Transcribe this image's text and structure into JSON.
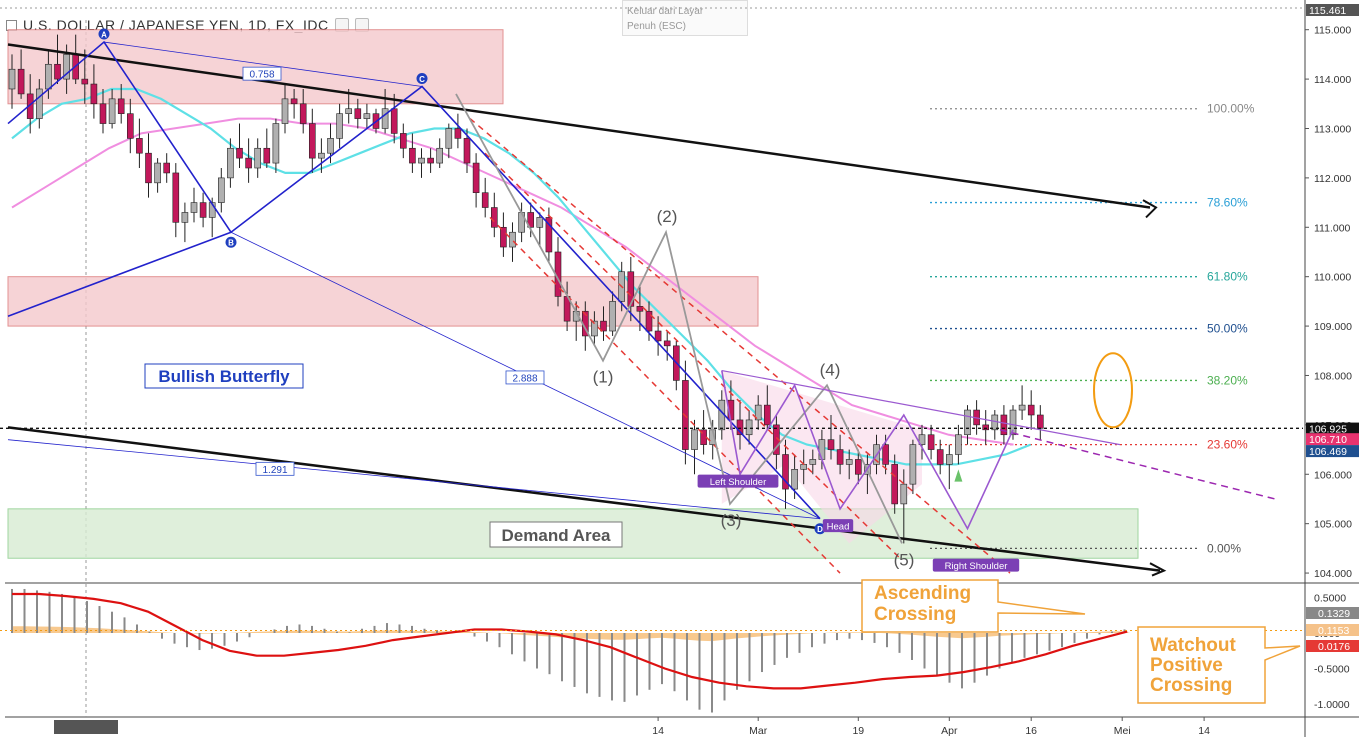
{
  "header": {
    "title": "U.S. DOLLAR / JAPANESE YEN, 1D, FX_IDC",
    "tooltip_line1": "Keluar dari Layar",
    "tooltip_line2": "Penuh (ESC)"
  },
  "colors": {
    "bull": "#b0b0b0",
    "bear": "#c2185b",
    "candle_border": "#222222",
    "ema_fast": "#5ee0e6",
    "ema_slow": "#f08ee0",
    "trend": "#111111",
    "harmonic": "#2222cc",
    "supply": "#f5c9cc",
    "demand": "#d8ecd3",
    "macd_hist": "#8a8a8a",
    "macd_signal": "#dd1111",
    "macd_area": "#f7c07a",
    "annot": "#f0a33a"
  },
  "chart_data": {
    "type": "candlestick",
    "symbol": "U.S. DOLLAR / JAPANESE YEN, 1D, FX_IDC",
    "ylim": [
      103.9,
      115.5
    ],
    "y_ticks": [
      "115.000",
      "114.000",
      "113.000",
      "112.000",
      "111.000",
      "110.000",
      "109.000",
      "108.000",
      "107.000",
      "106.000",
      "105.000",
      "104.000"
    ],
    "price_labels": [
      {
        "text": "115.461",
        "value": 115.461,
        "color": "#ffffff",
        "bg": "#555555"
      },
      {
        "text": "106.925",
        "value": 106.925,
        "color": "#ffffff",
        "bg": "#111111"
      },
      {
        "text": "106.710",
        "value": 106.71,
        "color": "#ffffff",
        "bg": "#e8336f"
      },
      {
        "text": "106.469",
        "value": 106.469,
        "color": "#ffffff",
        "bg": "#1f4f8f"
      }
    ],
    "x_ticks": [
      {
        "label": "14",
        "idx": 71
      },
      {
        "label": "Mar",
        "idx": 82
      },
      {
        "label": "19",
        "idx": 93
      },
      {
        "label": "Apr",
        "idx": 103
      },
      {
        "label": "16",
        "idx": 112
      },
      {
        "label": "Mei",
        "idx": 122
      },
      {
        "label": "14",
        "idx": 131
      }
    ],
    "candles": [
      [
        113.8,
        114.5,
        113.4,
        114.2
      ],
      [
        114.2,
        114.6,
        113.6,
        113.7
      ],
      [
        113.7,
        114.1,
        112.9,
        113.2
      ],
      [
        113.2,
        114.0,
        113.0,
        113.8
      ],
      [
        113.8,
        114.6,
        113.6,
        114.3
      ],
      [
        114.3,
        114.9,
        113.9,
        114.0
      ],
      [
        114.0,
        114.7,
        113.7,
        114.5
      ],
      [
        114.5,
        114.9,
        113.9,
        114.0
      ],
      [
        114.0,
        114.6,
        113.5,
        113.9
      ],
      [
        113.9,
        114.3,
        113.2,
        113.5
      ],
      [
        113.5,
        113.8,
        112.9,
        113.1
      ],
      [
        113.1,
        113.8,
        113.0,
        113.6
      ],
      [
        113.6,
        113.9,
        113.1,
        113.3
      ],
      [
        113.3,
        113.6,
        112.5,
        112.8
      ],
      [
        112.8,
        113.2,
        112.2,
        112.5
      ],
      [
        112.5,
        112.9,
        111.6,
        111.9
      ],
      [
        111.9,
        112.4,
        111.7,
        112.3
      ],
      [
        112.3,
        112.5,
        111.9,
        112.1
      ],
      [
        112.1,
        112.3,
        110.8,
        111.1
      ],
      [
        111.1,
        111.5,
        110.7,
        111.3
      ],
      [
        111.3,
        111.8,
        111.1,
        111.5
      ],
      [
        111.5,
        111.7,
        111.0,
        111.2
      ],
      [
        111.2,
        111.6,
        110.8,
        111.5
      ],
      [
        111.5,
        112.2,
        111.3,
        112.0
      ],
      [
        112.0,
        112.8,
        111.8,
        112.6
      ],
      [
        112.6,
        113.1,
        112.2,
        112.4
      ],
      [
        112.4,
        112.8,
        111.9,
        112.2
      ],
      [
        112.2,
        112.8,
        112.0,
        112.6
      ],
      [
        112.6,
        113.0,
        112.2,
        112.3
      ],
      [
        112.3,
        113.2,
        112.1,
        113.1
      ],
      [
        113.1,
        113.9,
        112.9,
        113.6
      ],
      [
        113.6,
        113.8,
        113.2,
        113.5
      ],
      [
        113.5,
        113.8,
        112.9,
        113.1
      ],
      [
        113.1,
        113.4,
        112.1,
        112.4
      ],
      [
        112.4,
        112.8,
        112.1,
        112.5
      ],
      [
        112.5,
        113.1,
        112.3,
        112.8
      ],
      [
        112.8,
        113.5,
        112.6,
        113.3
      ],
      [
        113.3,
        113.8,
        113.1,
        113.4
      ],
      [
        113.4,
        113.6,
        113.0,
        113.2
      ],
      [
        113.2,
        113.5,
        113.0,
        113.3
      ],
      [
        113.3,
        113.4,
        112.9,
        113.0
      ],
      [
        113.0,
        113.8,
        112.9,
        113.4
      ],
      [
        113.4,
        113.7,
        112.7,
        112.9
      ],
      [
        112.9,
        113.1,
        112.4,
        112.6
      ],
      [
        112.6,
        112.9,
        112.1,
        112.3
      ],
      [
        112.3,
        112.6,
        112.0,
        112.4
      ],
      [
        112.4,
        112.6,
        112.1,
        112.3
      ],
      [
        112.3,
        112.8,
        112.2,
        112.6
      ],
      [
        112.6,
        113.1,
        112.4,
        113.0
      ],
      [
        113.0,
        113.3,
        112.6,
        112.8
      ],
      [
        112.8,
        113.0,
        112.1,
        112.3
      ],
      [
        112.3,
        112.5,
        111.4,
        111.7
      ],
      [
        111.7,
        112.0,
        111.2,
        111.4
      ],
      [
        111.4,
        111.7,
        110.8,
        111.0
      ],
      [
        111.0,
        111.3,
        110.4,
        110.6
      ],
      [
        110.6,
        111.1,
        110.3,
        110.9
      ],
      [
        110.9,
        111.5,
        110.7,
        111.3
      ],
      [
        111.3,
        111.5,
        110.8,
        111.0
      ],
      [
        111.0,
        111.3,
        110.6,
        111.2
      ],
      [
        111.2,
        111.4,
        110.3,
        110.5
      ],
      [
        110.5,
        110.8,
        109.4,
        109.6
      ],
      [
        109.6,
        109.9,
        108.9,
        109.1
      ],
      [
        109.1,
        109.5,
        108.7,
        109.3
      ],
      [
        109.3,
        109.5,
        108.5,
        108.8
      ],
      [
        108.8,
        109.3,
        108.6,
        109.1
      ],
      [
        109.1,
        109.4,
        108.7,
        108.9
      ],
      [
        108.9,
        109.7,
        108.8,
        109.5
      ],
      [
        109.5,
        110.3,
        109.3,
        110.1
      ],
      [
        110.1,
        110.4,
        109.1,
        109.4
      ],
      [
        109.4,
        109.8,
        108.9,
        109.3
      ],
      [
        109.3,
        109.5,
        108.7,
        108.9
      ],
      [
        108.9,
        109.2,
        108.4,
        108.7
      ],
      [
        108.7,
        108.9,
        108.3,
        108.6
      ],
      [
        108.6,
        108.7,
        107.7,
        107.9
      ],
      [
        107.9,
        108.3,
        106.2,
        106.5
      ],
      [
        106.5,
        107.1,
        106.0,
        106.9
      ],
      [
        106.9,
        107.3,
        106.4,
        106.6
      ],
      [
        106.6,
        107.1,
        106.3,
        106.9
      ],
      [
        106.9,
        107.7,
        106.7,
        107.5
      ],
      [
        107.5,
        107.9,
        106.9,
        107.1
      ],
      [
        107.1,
        107.5,
        106.5,
        106.8
      ],
      [
        106.8,
        107.3,
        106.6,
        107.1
      ],
      [
        107.1,
        107.6,
        106.9,
        107.4
      ],
      [
        107.4,
        107.8,
        106.9,
        107.0
      ],
      [
        107.0,
        107.2,
        106.1,
        106.4
      ],
      [
        106.4,
        106.7,
        105.3,
        105.7
      ],
      [
        105.7,
        106.4,
        105.5,
        106.1
      ],
      [
        106.1,
        106.5,
        105.8,
        106.2
      ],
      [
        106.2,
        106.5,
        106.0,
        106.3
      ],
      [
        106.3,
        106.9,
        106.1,
        106.7
      ],
      [
        106.7,
        107.2,
        106.3,
        106.5
      ],
      [
        106.5,
        106.8,
        106.0,
        106.2
      ],
      [
        106.2,
        106.5,
        105.9,
        106.3
      ],
      [
        106.3,
        106.5,
        105.8,
        106.0
      ],
      [
        106.0,
        106.4,
        105.6,
        106.2
      ],
      [
        106.2,
        106.8,
        106.0,
        106.6
      ],
      [
        106.6,
        106.8,
        106.0,
        106.2
      ],
      [
        106.2,
        106.4,
        105.2,
        105.4
      ],
      [
        105.4,
        106.1,
        104.6,
        105.8
      ],
      [
        105.8,
        106.7,
        105.6,
        106.6
      ],
      [
        106.6,
        107.0,
        106.3,
        106.8
      ],
      [
        106.8,
        107.0,
        106.3,
        106.5
      ],
      [
        106.5,
        106.7,
        106.0,
        106.2
      ],
      [
        106.2,
        106.6,
        105.7,
        106.4
      ],
      [
        106.4,
        107.0,
        106.2,
        106.8
      ],
      [
        106.8,
        107.4,
        106.6,
        107.3
      ],
      [
        107.3,
        107.5,
        106.8,
        107.0
      ],
      [
        107.0,
        107.3,
        106.6,
        106.9
      ],
      [
        106.9,
        107.3,
        106.7,
        107.2
      ],
      [
        107.2,
        107.4,
        106.6,
        106.8
      ],
      [
        106.8,
        107.4,
        106.7,
        107.3
      ],
      [
        107.3,
        107.8,
        107.1,
        107.4
      ],
      [
        107.4,
        107.7,
        106.9,
        107.2
      ],
      [
        107.2,
        107.4,
        106.7,
        106.93
      ]
    ],
    "ema_fast": [
      112.8,
      113.2,
      113.5,
      113.6,
      113.8,
      113.8,
      113.6,
      113.3,
      113.0,
      112.6,
      112.3,
      112.1,
      112.1,
      112.3,
      112.5,
      112.7,
      112.9,
      113.0,
      113.0,
      112.8,
      112.5,
      112.1,
      111.6,
      111.0,
      110.4,
      109.8,
      109.3,
      108.8,
      108.3,
      107.7,
      107.2,
      106.8,
      106.6,
      106.5,
      106.4,
      106.3,
      106.2,
      106.2,
      106.2,
      106.3,
      106.4,
      106.6
    ],
    "ema_slow": [
      111.4,
      111.8,
      112.2,
      112.6,
      112.9,
      113.0,
      113.1,
      113.2,
      113.2,
      113.1,
      113.1,
      113.0,
      112.8,
      112.6,
      112.3,
      112.0,
      111.7,
      111.4,
      111.0,
      110.6,
      110.1,
      109.6,
      109.1,
      108.6,
      108.2,
      107.8,
      107.4,
      107.2,
      107.0,
      106.8,
      106.7,
      106.6
    ],
    "fibonacci": [
      {
        "label": "100.00%",
        "value": 113.4,
        "color": "#888888"
      },
      {
        "label": "78.60%",
        "value": 111.5,
        "color": "#2a9fd6"
      },
      {
        "label": "61.80%",
        "value": 110.0,
        "color": "#26a69a"
      },
      {
        "label": "50.00%",
        "value": 108.95,
        "color": "#1f4f8f"
      },
      {
        "label": "38.20%",
        "value": 107.9,
        "color": "#4caf50"
      },
      {
        "label": "23.60%",
        "value": 106.6,
        "color": "#e53935"
      },
      {
        "label": "0.00%",
        "value": 104.5,
        "color": "#555555"
      }
    ],
    "harmonic_points": [
      "A",
      "B",
      "C",
      "D"
    ],
    "harmonic_ratios": [
      "0.758",
      "2.888",
      "1.291"
    ],
    "wave_labels": [
      "(1)",
      "(2)",
      "(3)",
      "(4)",
      "(5)"
    ],
    "pattern_labels": [
      "Left Shoulder",
      "Head",
      "Right Shoulder"
    ],
    "zone_labels": {
      "bullish": "Bullish Butterfly",
      "demand": "Demand Area"
    },
    "annotations": {
      "crossing": [
        "Ascending",
        "Crossing"
      ],
      "watchout": [
        "Watchout",
        "Positive",
        "Crossing"
      ]
    },
    "macd": {
      "y_ticks": [
        "0.5000",
        "0.000",
        "-0.5000",
        "-1.0000"
      ],
      "value_labels": [
        {
          "text": "0.1329",
          "value": 0.1329,
          "bg": "#888888"
        },
        {
          "text": "0.1153",
          "value": 0.1153,
          "bg": "#f5c28a"
        },
        {
          "text": "0.0176",
          "value": 0.0176,
          "bg": "#e53935"
        }
      ],
      "histogram": [
        0.62,
        0.62,
        0.6,
        0.58,
        0.55,
        0.5,
        0.45,
        0.38,
        0.3,
        0.22,
        0.12,
        0.02,
        -0.08,
        -0.15,
        -0.2,
        -0.24,
        -0.22,
        -0.18,
        -0.12,
        -0.06,
        0.0,
        0.05,
        0.1,
        0.12,
        0.1,
        0.06,
        0.02,
        0.01,
        0.06,
        0.1,
        0.14,
        0.12,
        0.1,
        0.06,
        0.04,
        0.02,
        0.0,
        -0.05,
        -0.12,
        -0.2,
        -0.3,
        -0.4,
        -0.5,
        -0.58,
        -0.68,
        -0.76,
        -0.85,
        -0.9,
        -0.95,
        -0.97,
        -0.88,
        -0.8,
        -0.72,
        -0.82,
        -0.95,
        -1.08,
        -1.12,
        -0.95,
        -0.8,
        -0.68,
        -0.55,
        -0.45,
        -0.35,
        -0.28,
        -0.2,
        -0.15,
        -0.1,
        -0.08,
        -0.1,
        -0.14,
        -0.2,
        -0.28,
        -0.38,
        -0.5,
        -0.6,
        -0.7,
        -0.78,
        -0.7,
        -0.6,
        -0.5,
        -0.42,
        -0.35,
        -0.3,
        -0.25,
        -0.2,
        -0.14,
        -0.08,
        -0.02,
        0.02,
        0.05
      ]
    }
  }
}
